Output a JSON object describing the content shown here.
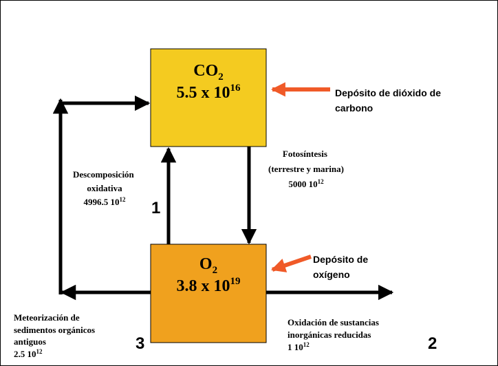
{
  "boxes": [
    {
      "formula": "CO",
      "subscript": "2",
      "value": "5.5 x 10",
      "exponent": "16"
    },
    {
      "formula": "O",
      "subscript": "2",
      "value": "3.8 x 10",
      "exponent": "19"
    }
  ],
  "reservoir_labels": [
    {
      "lines": [
        "Depósito de dióxido de",
        "carbono"
      ]
    },
    {
      "lines": [
        "Depósito de",
        "oxígeno"
      ]
    }
  ],
  "fluxes": [
    {
      "lines": [
        "Fotosíntesis",
        "(terrestre y marina)"
      ],
      "value": "5000 10",
      "exponent": "12"
    },
    {
      "number": "1",
      "lines": [
        "Descomposición",
        "oxidativa"
      ],
      "value": "4996.5 10",
      "exponent": "12"
    },
    {
      "number": "2",
      "lines": [
        "Oxidación de sustancias",
        "inorgánicas reducidas"
      ],
      "value": "1 10",
      "exponent": "12"
    },
    {
      "number": "3",
      "lines": [
        "Meteorización de",
        "sedimentos orgánicos",
        "antiguos"
      ],
      "value": "2.5 10",
      "exponent": "12"
    }
  ]
}
